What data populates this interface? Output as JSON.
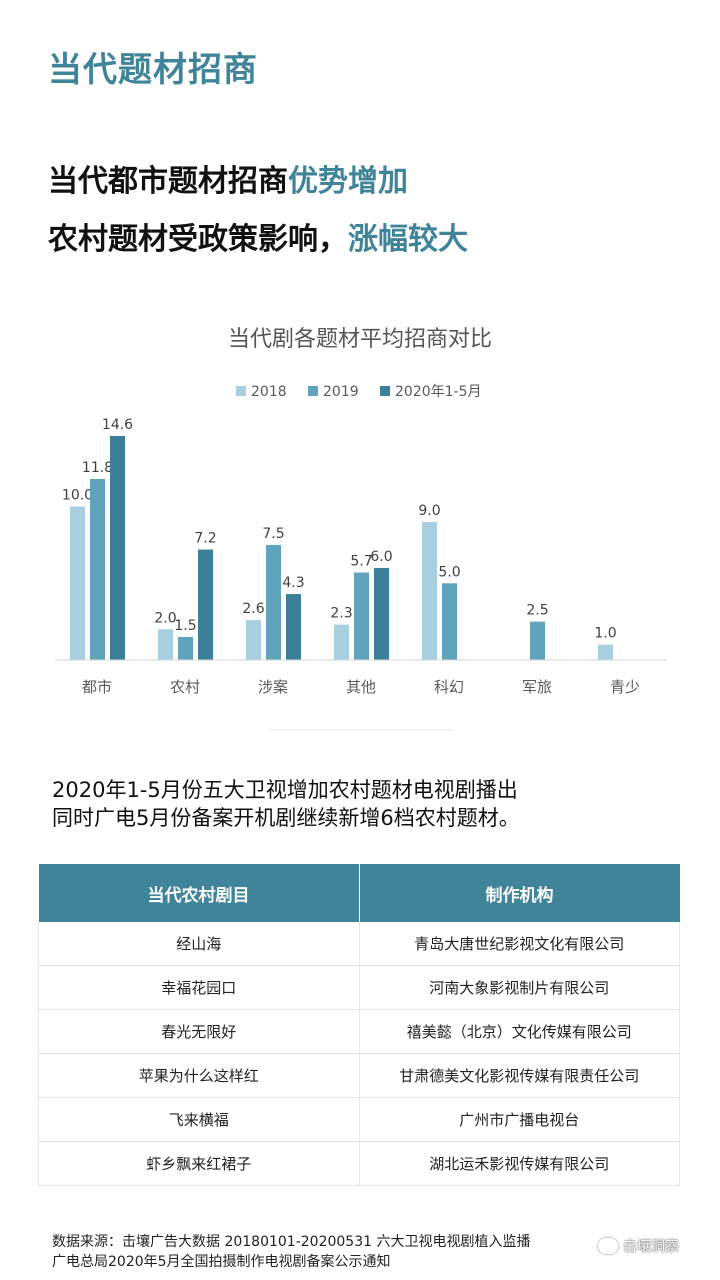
{
  "section_title": "当代题材招商",
  "headline": {
    "line1_plain": "当代都市题材招商",
    "line1_highlight": "优势增加",
    "line2_plain": "农村题材受政策影响，",
    "line2_highlight": "涨幅较大"
  },
  "colors": {
    "accent": "#3f8499",
    "series_2018": "#a9cfdf",
    "series_2019": "#5fa3bc",
    "series_2020": "#3b7f99"
  },
  "chart_data": {
    "type": "bar",
    "title": "当代剧各题材平均招商对比",
    "categories": [
      "都市",
      "农村",
      "涉案",
      "其他",
      "科幻",
      "军旅",
      "青少"
    ],
    "series": [
      {
        "name": "2018",
        "values": [
          10.0,
          2.0,
          2.6,
          2.3,
          9.0,
          null,
          1.0
        ]
      },
      {
        "name": "2019",
        "values": [
          11.8,
          1.5,
          7.5,
          5.7,
          5.0,
          2.5,
          null
        ]
      },
      {
        "name": "2020年1-5月",
        "values": [
          14.6,
          7.2,
          4.3,
          6.0,
          null,
          null,
          null
        ]
      }
    ],
    "ylim": [
      0,
      14.6
    ],
    "legend": "top-center",
    "grid": false,
    "value_labels": [
      "10.0",
      "11.8",
      "14.6",
      "2.0",
      "1.5",
      "7.2",
      "2.6",
      "7.5",
      "4.3",
      "2.3",
      "5.7",
      "6.0",
      "9.0",
      "5.0",
      "2.5",
      "1.0"
    ]
  },
  "note": {
    "line1": "2020年1-5月份五大卫视增加农村题材电视剧播出",
    "line2": "同时广电5月份备案开机剧继续新增6档农村题材。"
  },
  "table": {
    "headers": [
      "当代农村剧目",
      "制作机构"
    ],
    "rows": [
      [
        "经山海",
        "青岛大唐世纪影视文化有限公司"
      ],
      [
        "幸福花园口",
        "河南大象影视制片有限公司"
      ],
      [
        "春光无限好",
        "禧美懿（北京）文化传媒有限公司"
      ],
      [
        "苹果为什么这样红",
        "甘肃德美文化影视传媒有限责任公司"
      ],
      [
        "飞来横福",
        "广州市广播电视台"
      ],
      [
        "虾乡飘来红裙子",
        "湖北运禾影视传媒有限公司"
      ]
    ]
  },
  "source": {
    "line1": "数据来源：击壤广告大数据 20180101-20200531 六大卫视电视剧植入监播",
    "line2": "广电总局2020年5月全国拍摄制作电视剧备案公示通知"
  },
  "watermark": "击壤洞察"
}
